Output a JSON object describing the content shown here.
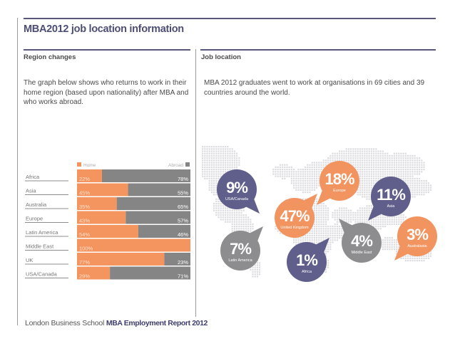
{
  "page_title": "MBA2012 job location information",
  "left_section": {
    "title": "Region changes",
    "description": "The graph below shows who returns to work in their home region (based upon nationality) after MBA and who works abroad."
  },
  "right_section": {
    "title": "Job location",
    "description": "MBA 2012 graduates went to work at organisations in 69 cities and 39 countries around the world."
  },
  "footer": {
    "org": "London Business School",
    "report": "MBA Employment Report 2012"
  },
  "colors": {
    "home": "#f4955f",
    "abroad": "#858585",
    "navy": "#605e8a",
    "orange": "#f29460",
    "grey": "#8d8d8f"
  },
  "chart_data": [
    {
      "type": "bar",
      "stacked": true,
      "orientation": "horizontal",
      "title": "Region changes",
      "categories": [
        "Africa",
        "Asia",
        "Australia",
        "Europe",
        "Latin America",
        "Middle East",
        "UK",
        "USA/Canada"
      ],
      "series": [
        {
          "name": "Home",
          "values": [
            22,
            45,
            35,
            43,
            54,
            100,
            77,
            29
          ]
        },
        {
          "name": "Abroad",
          "values": [
            78,
            55,
            65,
            57,
            46,
            0,
            23,
            71
          ]
        }
      ],
      "data_labels": {
        "Home": [
          "22%",
          "45%",
          "35%",
          "43%",
          "54%",
          "100%",
          "77%",
          "29%"
        ],
        "Abroad": [
          "78%",
          "55%",
          "65%",
          "57%",
          "46%",
          "",
          "23%",
          "71%"
        ]
      },
      "legend": [
        "Home",
        "Abroad"
      ],
      "legend_placement": "top",
      "xlim": [
        0,
        100
      ],
      "unit": "%"
    },
    {
      "type": "pie",
      "subtype": "map-bubbles",
      "title": "Job location",
      "categories": [
        "USA/Canada",
        "Europe",
        "United Kingdom",
        "Asia",
        "Latin America",
        "Africa",
        "Middle East",
        "Australasia"
      ],
      "values": [
        9,
        18,
        47,
        11,
        7,
        1,
        4,
        3
      ],
      "labels": [
        "9%",
        "18%",
        "47%",
        "11%",
        "7%",
        "1%",
        "4%",
        "3%"
      ],
      "bubble_colors": [
        "navy",
        "orange",
        "orange",
        "navy",
        "grey",
        "navy",
        "grey",
        "orange"
      ],
      "unit": "%"
    }
  ]
}
